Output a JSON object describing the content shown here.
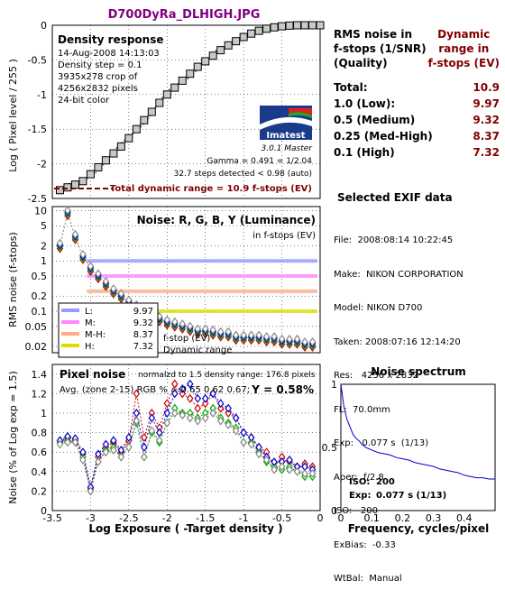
{
  "title": "D700DyRa_DLHIGH.JPG",
  "table": {
    "col1_header": [
      "RMS noise in",
      "f-stops (1/SNR)",
      "(Quality)"
    ],
    "col2_header": [
      "Dynamic",
      "range in",
      "f-stops (EV)"
    ],
    "rows": [
      {
        "label": "Total:",
        "value": "10.9"
      },
      {
        "label": "1.0   (Low):",
        "value": "9.97"
      },
      {
        "label": "0.5   (Medium)",
        "value": "9.32"
      },
      {
        "label": "0.25 (Med-High)",
        "value": "8.37"
      },
      {
        "label": "0.1   (High)",
        "value": "7.32"
      }
    ]
  },
  "exif": {
    "title": "Selected EXIF data",
    "lines": [
      "File:  2008:08:14 10:22:45",
      "Make:  NIKON CORPORATION",
      "Model: NIKON D700",
      "Taken: 2008:07:16 12:14:20",
      "Res:   4256 x 2832",
      "FL:  70.0mm",
      "Exp:   0.077 s  (1/13)",
      "Aper:  f/2.8",
      "ISO:   200",
      "ExBias:  -0.33",
      "WtBal:  Manual"
    ]
  },
  "colors": {
    "title": "#800080",
    "dark_red": "#800000",
    "blue_text": "#000080",
    "luminance": "#9999ff",
    "red_line": "#ff88ff",
    "orange_line": "#ffaa88",
    "yellow_line": "#dddd00",
    "density_curve": "#000000",
    "fit_curve": "#00aa00",
    "spectrum": "#0000cc"
  },
  "chart_data": [
    {
      "type": "scatter",
      "title": "Density response",
      "info": [
        "14-Aug-2008 14:13:03",
        "Density step = 0.1",
        "3935x278 crop of",
        "4256x2832 pixels",
        "24-bit color"
      ],
      "logo": "Imatest",
      "version": "3.0.1  Master",
      "gamma_text": "Gamma = 0.491 = 1/2.04",
      "steps_text": "32.7 steps detected < 0.98 (auto)",
      "total_dr_text": "Total dynamic range = 10.9 f-stops (EV)",
      "ylabel": "Log ( Pixel level / 255 )",
      "ylim": [
        -2.5,
        0
      ],
      "xlim": [
        -3.5,
        0
      ],
      "yticks": [
        "0",
        "-0.5",
        "-1",
        "-1.5",
        "-2",
        "-2.5"
      ],
      "x": [
        -3.4,
        -3.3,
        -3.2,
        -3.1,
        -3.0,
        -2.9,
        -2.8,
        -2.7,
        -2.6,
        -2.5,
        -2.4,
        -2.3,
        -2.2,
        -2.1,
        -2.0,
        -1.9,
        -1.8,
        -1.7,
        -1.6,
        -1.5,
        -1.4,
        -1.3,
        -1.2,
        -1.1,
        -1.0,
        -0.9,
        -0.8,
        -0.7,
        -0.6,
        -0.5,
        -0.4,
        -0.3,
        -0.2,
        -0.1,
        0.0
      ],
      "y": [
        -2.38,
        -2.34,
        -2.3,
        -2.25,
        -2.15,
        -2.05,
        -1.95,
        -1.85,
        -1.75,
        -1.63,
        -1.5,
        -1.37,
        -1.25,
        -1.12,
        -1.0,
        -0.9,
        -0.8,
        -0.7,
        -0.6,
        -0.52,
        -0.44,
        -0.36,
        -0.29,
        -0.23,
        -0.17,
        -0.12,
        -0.08,
        -0.05,
        -0.03,
        -0.015,
        -0.005,
        0.0,
        0.0,
        0.0,
        0.0
      ]
    },
    {
      "type": "line",
      "title": "Noise: R, G, B, Y (Luminance)",
      "subtitle": "in f-stops (EV)",
      "ylabel": "RMS noise (f-stops)",
      "yscale": "log",
      "ylim": [
        0.015,
        10
      ],
      "xlim": [
        -3.5,
        0
      ],
      "yticks": [
        "10",
        "5",
        "2",
        "1",
        "0.5",
        "0.2",
        "0.1",
        "0.05",
        "0.02"
      ],
      "legend": [
        {
          "name": "L:",
          "value": "9.97",
          "level": 1.0
        },
        {
          "name": "M:",
          "value": "9.32",
          "level": 0.5
        },
        {
          "name": "M-H:",
          "value": "8.37",
          "level": 0.25
        },
        {
          "name": "H:",
          "value": "7.32",
          "level": 0.1
        }
      ],
      "legend_note": [
        "f-stop (EV)",
        "Dynamic range"
      ],
      "x": [
        -3.4,
        -3.3,
        -3.2,
        -3.1,
        -3.0,
        -2.9,
        -2.8,
        -2.7,
        -2.6,
        -2.5,
        -2.4,
        -2.3,
        -2.2,
        -2.1,
        -2.0,
        -1.9,
        -1.8,
        -1.7,
        -1.6,
        -1.5,
        -1.4,
        -1.3,
        -1.2,
        -1.1,
        -1.0,
        -0.9,
        -0.8,
        -0.7,
        -0.6,
        -0.5,
        -0.4,
        -0.3,
        -0.2,
        -0.1
      ],
      "series": [
        {
          "name": "Y",
          "values": [
            2.0,
            9.0,
            3.0,
            1.2,
            0.7,
            0.5,
            0.35,
            0.25,
            0.2,
            0.15,
            0.12,
            0.1,
            0.08,
            0.07,
            0.06,
            0.055,
            0.05,
            0.045,
            0.04,
            0.04,
            0.038,
            0.035,
            0.035,
            0.03,
            0.03,
            0.03,
            0.03,
            0.028,
            0.028,
            0.025,
            0.025,
            0.025,
            0.022,
            0.022
          ]
        }
      ]
    },
    {
      "type": "line",
      "title": "Pixel noise",
      "note": "normalzd to 1.5 density range: 176.8 pixels",
      "avg_text": "Avg. (zone 2-15) RGB % = 0.65  0.62  0.67;",
      "y_text": "Y = 0.58%",
      "ylabel": "Noise (% of Log exp = 1.5)",
      "xlabel": "Log Exposure ( -Target density )",
      "ylim": [
        0,
        1.5
      ],
      "xlim": [
        -3.5,
        0
      ],
      "xticks": [
        "-3.5",
        "-3",
        "-2.5",
        "-2",
        "-1.5",
        "-1",
        "-0.5",
        "0"
      ],
      "yticks": [
        "0",
        "0.2",
        "0.4",
        "0.6",
        "0.8",
        "1",
        "1.2",
        "1.4"
      ],
      "x": [
        -3.4,
        -3.3,
        -3.2,
        -3.1,
        -3.0,
        -2.9,
        -2.8,
        -2.7,
        -2.6,
        -2.5,
        -2.4,
        -2.3,
        -2.2,
        -2.1,
        -2.0,
        -1.9,
        -1.8,
        -1.7,
        -1.6,
        -1.5,
        -1.4,
        -1.3,
        -1.2,
        -1.1,
        -1.0,
        -0.9,
        -0.8,
        -0.7,
        -0.6,
        -0.5,
        -0.4,
        -0.3,
        -0.2,
        -0.1
      ],
      "series": [
        {
          "name": "R",
          "values": [
            0.7,
            0.75,
            0.72,
            0.58,
            0.22,
            0.55,
            0.65,
            0.7,
            0.6,
            0.72,
            1.2,
            0.75,
            1.0,
            0.85,
            1.1,
            1.3,
            1.2,
            1.15,
            1.05,
            1.1,
            1.2,
            1.05,
            1.0,
            0.95,
            0.8,
            0.75,
            0.65,
            0.6,
            0.45,
            0.55,
            0.5,
            0.45,
            0.48,
            0.45
          ]
        },
        {
          "name": "G",
          "values": [
            0.7,
            0.72,
            0.7,
            0.55,
            0.2,
            0.5,
            0.62,
            0.65,
            0.55,
            0.65,
            0.9,
            0.55,
            0.8,
            0.7,
            0.9,
            1.05,
            1.0,
            1.0,
            0.95,
            1.0,
            1.05,
            0.95,
            0.9,
            0.85,
            0.7,
            0.7,
            0.6,
            0.5,
            0.45,
            0.42,
            0.45,
            0.4,
            0.35,
            0.35
          ]
        },
        {
          "name": "B",
          "values": [
            0.72,
            0.76,
            0.74,
            0.6,
            0.24,
            0.58,
            0.68,
            0.72,
            0.62,
            0.75,
            1.0,
            0.65,
            0.95,
            0.8,
            1.0,
            1.2,
            1.25,
            1.3,
            1.15,
            1.15,
            1.2,
            1.1,
            1.05,
            0.95,
            0.8,
            0.75,
            0.65,
            0.55,
            0.5,
            0.5,
            0.52,
            0.45,
            0.45,
            0.42
          ]
        },
        {
          "name": "Y",
          "values": [
            0.68,
            0.7,
            0.7,
            0.52,
            0.2,
            0.5,
            0.6,
            0.62,
            0.55,
            0.65,
            0.92,
            0.55,
            0.82,
            0.72,
            0.9,
            1.0,
            0.98,
            0.95,
            0.92,
            0.95,
            1.0,
            0.92,
            0.88,
            0.82,
            0.7,
            0.68,
            0.58,
            0.52,
            0.42,
            0.45,
            0.42,
            0.4,
            0.38,
            0.38
          ]
        }
      ]
    },
    {
      "type": "line",
      "title": "Noise spectrum",
      "xlabel": "Frequency, cycles/pixel",
      "xlim": [
        0,
        0.5
      ],
      "ylim": [
        0,
        1
      ],
      "xticks": [
        "0",
        "0.1",
        "0.2",
        "0.3",
        "0.4"
      ],
      "yticks": [
        "1",
        "0.5",
        "0"
      ],
      "iso_label": "ISO:",
      "iso_value": "200",
      "exp_label": "Exp:",
      "exp_value": "0.077 s  (1/13)",
      "x": [
        0,
        0.01,
        0.02,
        0.03,
        0.04,
        0.05,
        0.06,
        0.07,
        0.08,
        0.09,
        0.1,
        0.12,
        0.14,
        0.16,
        0.18,
        0.2,
        0.22,
        0.24,
        0.26,
        0.28,
        0.3,
        0.32,
        0.34,
        0.36,
        0.38,
        0.4,
        0.42,
        0.44,
        0.46,
        0.48,
        0.5
      ],
      "values": [
        1.0,
        0.82,
        0.72,
        0.66,
        0.6,
        0.57,
        0.55,
        0.52,
        0.5,
        0.49,
        0.48,
        0.46,
        0.45,
        0.44,
        0.42,
        0.41,
        0.4,
        0.38,
        0.37,
        0.36,
        0.35,
        0.33,
        0.32,
        0.31,
        0.3,
        0.28,
        0.27,
        0.26,
        0.26,
        0.25,
        0.25
      ]
    }
  ]
}
